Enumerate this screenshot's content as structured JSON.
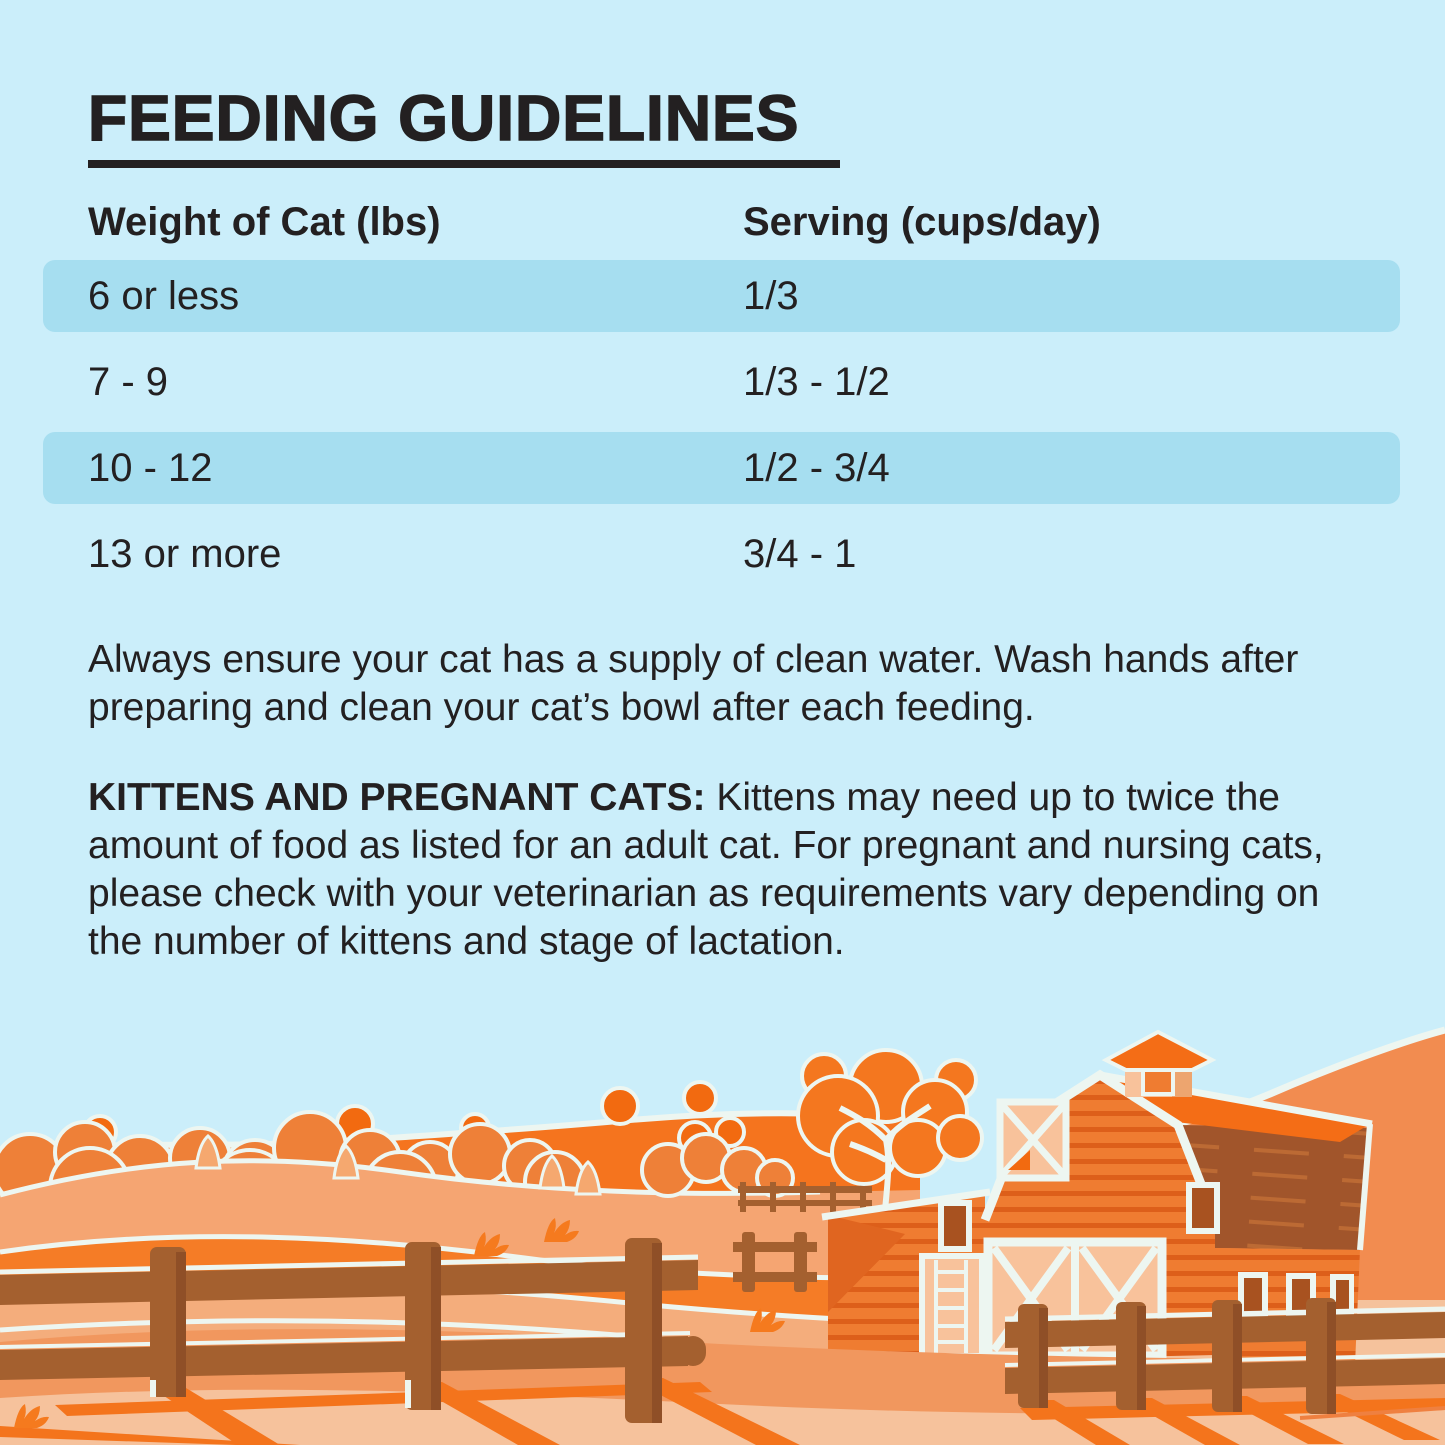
{
  "page": {
    "background_color": "#cbeefa",
    "text_color": "#232021",
    "row_highlight_color": "#a6def0"
  },
  "header": {
    "title": "FEEDING GUIDELINES"
  },
  "table": {
    "columns": [
      "Weight of Cat (lbs)",
      "Serving (cups/day)"
    ],
    "rows": [
      {
        "weight": "6 or less",
        "serving": "1/3",
        "highlighted": true
      },
      {
        "weight": "7 - 9",
        "serving": "1/3 - 1/2",
        "highlighted": false
      },
      {
        "weight": "10 - 12",
        "serving": "1/2 - 3/4",
        "highlighted": true
      },
      {
        "weight": "13 or more",
        "serving": "3/4 - 1",
        "highlighted": false
      }
    ]
  },
  "notes": {
    "water_note": "Always ensure your cat has a supply of clean water. Wash hands after preparing and clean your cat’s bowl after each feeding.",
    "kittens_note_label": "KITTENS AND PREGNANT CATS:",
    "kittens_note_text": "Kittens may need up to twice the amount of food as listed for an adult cat. For pregnant and nursing cats, please check with your veterinarian as requirements vary depending on the number of kittens and stage of lactation."
  },
  "illustration": {
    "scene": "orange farm landscape with barn, cupola, wooden fences, rolling hills, trees, haystacks and grass tufts",
    "colors": {
      "sky": "#cbeefa",
      "bright_orange": "#f5741e",
      "tree_orange": "#ee8038",
      "tree_bright": "#f26a10",
      "hill_light": "#f5a572",
      "hill_mid": "#f4ad7c",
      "hill_right": "#f28c50",
      "field_pale": "#f5c29c",
      "foreground_mid": "#f1975e",
      "foreground_light": "#f6c29c",
      "barn_wall": "#ef7c31",
      "barn_stripe": "#dd5f1a",
      "barn_panel": "#f8c29b",
      "roof_bright": "#f46d16",
      "roof_dark": "#a1552b",
      "fence_brown": "#a4602f",
      "shadow_orange": "#f4741c",
      "outline_white": "#edf6f1",
      "window_sash": "#a85220"
    }
  }
}
